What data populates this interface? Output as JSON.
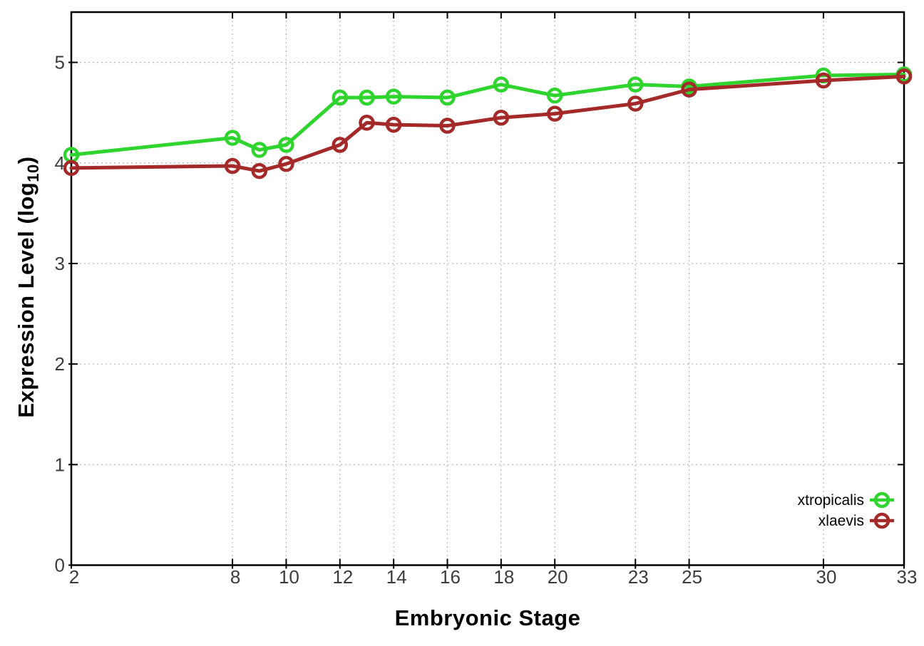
{
  "chart_data": {
    "type": "line",
    "title": "",
    "xlabel": "Embryonic Stage",
    "ylabel": "Expression Level (log10)",
    "ylabel_parts": {
      "prefix": "Expression Level (log",
      "sub": "10",
      "suffix": ")"
    },
    "x": [
      2,
      8,
      9,
      10,
      12,
      13,
      14,
      16,
      18,
      20,
      23,
      25,
      30,
      33
    ],
    "series": [
      {
        "name": "xtropicalis",
        "color": "#2fd42f",
        "values": [
          4.08,
          4.25,
          4.13,
          4.18,
          4.65,
          4.65,
          4.66,
          4.65,
          4.78,
          4.67,
          4.78,
          4.76,
          4.87,
          4.88
        ]
      },
      {
        "name": "xlaevis",
        "color": "#a42a2a",
        "values": [
          3.95,
          3.97,
          3.92,
          3.99,
          4.18,
          4.4,
          4.38,
          4.37,
          4.45,
          4.49,
          4.59,
          4.73,
          4.82,
          4.86
        ]
      }
    ],
    "xticks": [
      2,
      8,
      10,
      12,
      14,
      16,
      18,
      20,
      23,
      25,
      30,
      33
    ],
    "yticks": [
      0,
      1,
      2,
      3,
      4,
      5
    ],
    "xlim": [
      2,
      33
    ],
    "ylim": [
      0,
      5.5
    ],
    "grid": true,
    "marker": "open-circle",
    "legend": {
      "position": "inside-right",
      "entries": [
        "xtropicalis",
        "xlaevis"
      ]
    }
  },
  "colors": {
    "xtropicalis": "#2fd42f",
    "xlaevis": "#a42a2a",
    "grid": "#b8b8b8",
    "border": "#000000",
    "tick_label": "#3c3c3c",
    "axis_title": "#000000",
    "background": "#ffffff"
  }
}
